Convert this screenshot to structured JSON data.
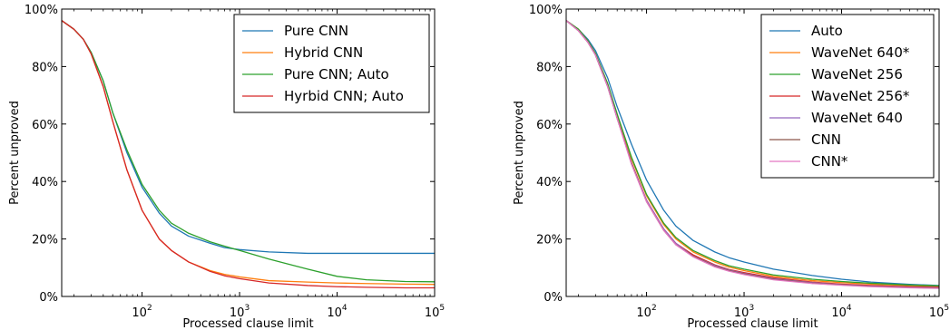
{
  "chart_data": [
    {
      "type": "line",
      "title": "",
      "xlabel": "Processed clause limit",
      "ylabel": "Percent unproved",
      "xscale": "log",
      "xlim": [
        15,
        100000
      ],
      "ylim": [
        0,
        100
      ],
      "x_ticks": [
        {
          "value": 100,
          "base": "10",
          "exp": "2"
        },
        {
          "value": 1000,
          "base": "10",
          "exp": "3"
        },
        {
          "value": 10000,
          "base": "10",
          "exp": "4"
        },
        {
          "value": 100000,
          "base": "10",
          "exp": "5"
        }
      ],
      "y_ticks": [
        {
          "value": 0,
          "label": "0%"
        },
        {
          "value": 20,
          "label": "20%"
        },
        {
          "value": 40,
          "label": "40%"
        },
        {
          "value": 60,
          "label": "60%"
        },
        {
          "value": 80,
          "label": "80%"
        },
        {
          "value": 100,
          "label": "100%"
        }
      ],
      "legend_position": "top-right",
      "grid": false,
      "x": [
        15,
        20,
        25,
        30,
        40,
        50,
        70,
        100,
        150,
        200,
        300,
        500,
        700,
        1000,
        2000,
        5000,
        10000,
        20000,
        50000,
        100000
      ],
      "series": [
        {
          "name": "Pure CNN",
          "color": "#1f77b4",
          "values": [
            96,
            93,
            89.5,
            85,
            75,
            64,
            50,
            38,
            29,
            24.5,
            21,
            18.5,
            17,
            16.3,
            15.5,
            15,
            15,
            15,
            15,
            15
          ]
        },
        {
          "name": "Hybrid CNN",
          "color": "#ff7f0e",
          "values": [
            96,
            93,
            89.5,
            84.5,
            73,
            61,
            44,
            30,
            20,
            16,
            12,
            9,
            7.7,
            6.8,
            5.5,
            5,
            4.7,
            4.5,
            4.3,
            4.2
          ]
        },
        {
          "name": "Pure CNN; Auto",
          "color": "#2ca02c",
          "values": [
            96,
            93,
            89.5,
            85,
            75,
            64,
            51,
            39,
            30,
            25.5,
            22,
            19,
            17.5,
            16,
            13,
            9.5,
            7,
            5.8,
            5.2,
            5.1
          ]
        },
        {
          "name": "Hyrbid CNN; Auto",
          "color": "#d62728",
          "values": [
            96,
            93,
            89.5,
            84.5,
            73,
            61,
            44,
            30,
            20,
            16,
            12,
            8.7,
            7.2,
            6.2,
            4.7,
            3.8,
            3.4,
            3.2,
            3,
            3
          ]
        }
      ]
    },
    {
      "type": "line",
      "title": "",
      "xlabel": "Processed clause limit",
      "ylabel": "Percent unproved",
      "xscale": "log",
      "xlim": [
        15,
        100000
      ],
      "ylim": [
        0,
        100
      ],
      "x_ticks": [
        {
          "value": 100,
          "base": "10",
          "exp": "2"
        },
        {
          "value": 1000,
          "base": "10",
          "exp": "3"
        },
        {
          "value": 10000,
          "base": "10",
          "exp": "4"
        },
        {
          "value": 100000,
          "base": "10",
          "exp": "5"
        }
      ],
      "y_ticks": [
        {
          "value": 0,
          "label": "0%"
        },
        {
          "value": 20,
          "label": "20%"
        },
        {
          "value": 40,
          "label": "40%"
        },
        {
          "value": 60,
          "label": "60%"
        },
        {
          "value": 80,
          "label": "80%"
        },
        {
          "value": 100,
          "label": "100%"
        }
      ],
      "legend_position": "top-right",
      "grid": false,
      "x": [
        15,
        20,
        25,
        30,
        40,
        50,
        70,
        100,
        150,
        200,
        300,
        500,
        700,
        1000,
        2000,
        5000,
        10000,
        20000,
        50000,
        100000
      ],
      "series": [
        {
          "name": "Auto",
          "color": "#1f77b4",
          "values": [
            96,
            93,
            89.5,
            85.5,
            76,
            66,
            53,
            40.5,
            30,
            24.5,
            19.5,
            15.5,
            13.5,
            12,
            9.5,
            7.3,
            6,
            5,
            4.2,
            3.8
          ]
        },
        {
          "name": "WaveNet 640*",
          "color": "#ff7f0e",
          "values": [
            96,
            93,
            89,
            84.5,
            74,
            63,
            48,
            35,
            25,
            20,
            15.5,
            12,
            10.2,
            9,
            7,
            5.5,
            4.8,
            4.3,
            3.8,
            3.5
          ]
        },
        {
          "name": "WaveNet 256",
          "color": "#2ca02c",
          "values": [
            96,
            93,
            89,
            84.5,
            74,
            63.5,
            48.5,
            35.5,
            25.5,
            20.5,
            16,
            12.5,
            10.7,
            9.5,
            7.5,
            6,
            5.2,
            4.6,
            4,
            3.7
          ]
        },
        {
          "name": "WaveNet 256*",
          "color": "#d62728",
          "values": [
            96,
            92.5,
            88.5,
            84,
            73,
            62,
            46.5,
            33.5,
            23.5,
            18.5,
            14.5,
            11,
            9.4,
            8.3,
            6.5,
            5,
            4.3,
            3.8,
            3.4,
            3.2
          ]
        },
        {
          "name": "WaveNet 640",
          "color": "#9467bd",
          "values": [
            96,
            92.5,
            88.5,
            84,
            73,
            62,
            46.5,
            33.5,
            23.5,
            18.5,
            14,
            10.8,
            9.2,
            8,
            6.2,
            4.8,
            4.1,
            3.6,
            3.2,
            3
          ]
        },
        {
          "name": "CNN",
          "color": "#8c564b",
          "values": [
            96,
            92.5,
            88.5,
            84,
            73,
            62,
            46.5,
            33,
            23,
            18,
            14,
            10.5,
            9,
            7.8,
            6,
            4.6,
            4,
            3.5,
            3.1,
            2.9
          ]
        },
        {
          "name": "CNN*",
          "color": "#e377c2",
          "values": [
            96,
            92.5,
            88.5,
            84,
            73,
            62,
            46,
            33,
            23,
            18,
            13.8,
            10.3,
            8.8,
            7.6,
            5.8,
            4.5,
            3.9,
            3.4,
            3,
            2.8
          ]
        }
      ]
    }
  ]
}
